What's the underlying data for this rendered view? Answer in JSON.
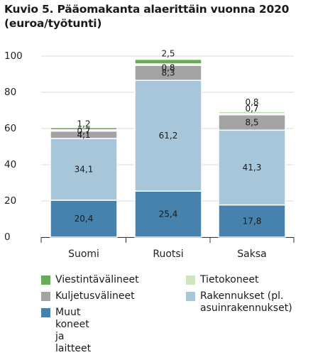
{
  "title": [
    "Kuvio 5. Pääomakanta alaerittäin vuonna 2020",
    "(euroa/työtunti)"
  ],
  "colors": {
    "viestinta": "#6aaa5a",
    "tieto": "#cfe5c0",
    "kuljetus": "#a3a3a3",
    "rakennukset": "#a8c6da",
    "muut": "#4682ab",
    "grid": "#d9d9d9",
    "bar_edge": "#ffffff"
  },
  "chart_data": {
    "type": "bar",
    "stacked": true,
    "title": "Kuvio 5. Pääomakanta alaerittäin vuonna 2020 (euroa/työtunti)",
    "categories": [
      "Suomi",
      "Ruotsi",
      "Saksa"
    ],
    "ylim": [
      0,
      100
    ],
    "yticks": [
      0,
      20,
      40,
      60,
      80,
      100
    ],
    "grid": true,
    "legend_position": "bottom",
    "series": [
      {
        "name": "Muut koneet ja laitteet",
        "key": "muut",
        "values": [
          20.4,
          25.4,
          17.8
        ],
        "labels": [
          "20,4",
          "25,4",
          "17,8"
        ]
      },
      {
        "name": "Rakennukset (pl. asuinrakennukset)",
        "key": "rakennukset",
        "values": [
          34.1,
          61.2,
          41.3
        ],
        "labels": [
          "34,1",
          "61,2",
          "41,3"
        ]
      },
      {
        "name": "Kuljetusvälineet",
        "key": "kuljetus",
        "values": [
          4.1,
          8.3,
          8.5
        ],
        "labels": [
          "4,1",
          "8,3",
          "8,5"
        ]
      },
      {
        "name": "Tietokoneet",
        "key": "tieto",
        "values": [
          0.7,
          0.8,
          0.7
        ],
        "labels": [
          "0,7",
          "0,8",
          "0,7"
        ]
      },
      {
        "name": "Viestintävälineet",
        "key": "viestinta",
        "values": [
          1.2,
          2.5,
          0.8
        ],
        "labels": [
          "1,2",
          "2,5",
          "0,8"
        ]
      }
    ]
  },
  "legend": [
    {
      "label": "Viestintävälineet",
      "key": "viestinta"
    },
    {
      "label": "Tietokoneet",
      "key": "tieto"
    },
    {
      "label": "Kuljetusvälineet",
      "key": "kuljetus"
    },
    {
      "label": "Rakennukset (pl.\nasuinrakennukset)",
      "key": "rakennukset"
    },
    {
      "label": "Muut koneet ja laitteet",
      "key": "muut"
    }
  ]
}
